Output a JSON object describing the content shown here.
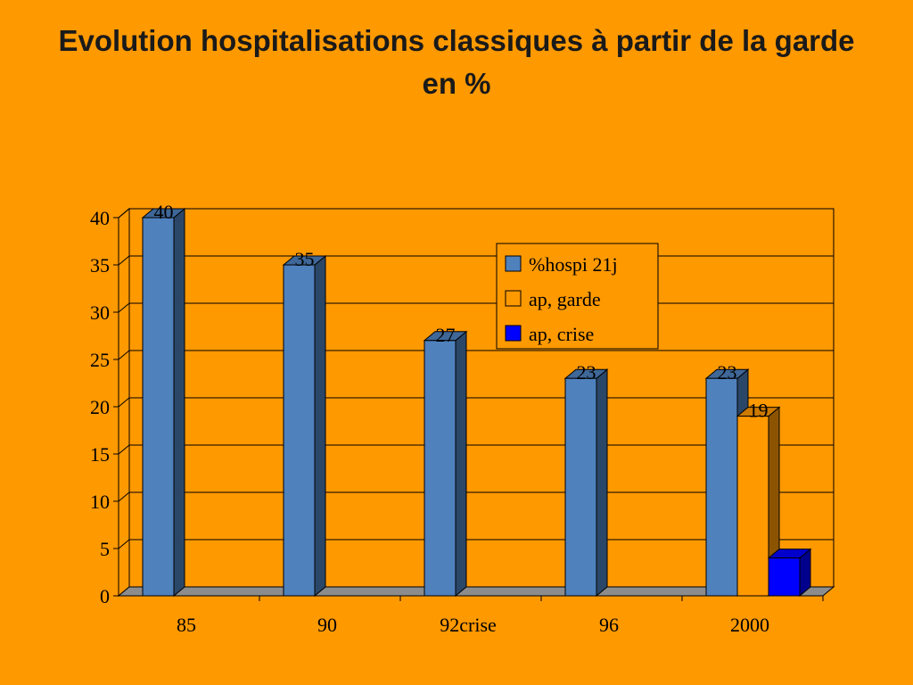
{
  "title_line1": "Evolution hospitalisations classiques à partir de la garde",
  "title_line2": "en %",
  "chart_data": {
    "type": "bar",
    "categories": [
      "85",
      "90",
      "92crise",
      "96",
      "2000"
    ],
    "series": [
      {
        "name": "%hospi 21j",
        "color": "#4F81BD",
        "values": [
          40,
          35,
          27,
          23,
          23
        ]
      },
      {
        "name": "ap, garde",
        "color": "#FF9900",
        "values": [
          null,
          null,
          null,
          null,
          19
        ]
      },
      {
        "name": "ap, crise",
        "color": "#0000FF",
        "values": [
          null,
          null,
          null,
          null,
          4
        ]
      }
    ],
    "data_labels": [
      {
        "series": 0,
        "category": 0,
        "text": "40"
      },
      {
        "series": 0,
        "category": 1,
        "text": "35"
      },
      {
        "series": 0,
        "category": 2,
        "text": "27"
      },
      {
        "series": 0,
        "category": 3,
        "text": "23"
      },
      {
        "series": 0,
        "category": 4,
        "text": "23"
      },
      {
        "series": 1,
        "category": 4,
        "text": "19"
      }
    ],
    "ylim": [
      0,
      40
    ],
    "yticks": [
      "0",
      "5",
      "10",
      "15",
      "20",
      "25",
      "30",
      "35",
      "40"
    ],
    "grid": true,
    "legend_position": "top-right",
    "style": "3d"
  }
}
